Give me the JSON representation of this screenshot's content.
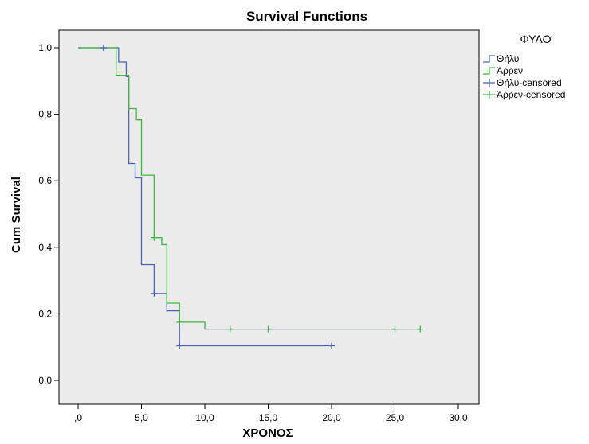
{
  "chart_data": {
    "type": "line",
    "title": "Survival Functions",
    "xlabel": "ΧΡΟΝΟΣ",
    "ylabel": "Cum Survival",
    "xlim": [
      0,
      30
    ],
    "ylim": [
      0,
      1
    ],
    "x_ticks": [
      0,
      5,
      10,
      15,
      20,
      25,
      30
    ],
    "x_tick_labels": [
      ",0",
      "5,0",
      "10,0",
      "15,0",
      "20,0",
      "25,0",
      "30,0"
    ],
    "y_ticks": [
      0,
      0.2,
      0.4,
      0.6,
      0.8,
      1.0
    ],
    "y_tick_labels": [
      "0,0",
      "0,2",
      "0,4",
      "0,6",
      "0,8",
      "1,0"
    ],
    "grid": false,
    "plot_background": "#ebebeb",
    "legend_title": "ΦΥΛΟ",
    "legend_position": "right",
    "series": [
      {
        "name": "Θήλυ",
        "color": "#4a63b5",
        "style": "step",
        "points": [
          [
            0,
            1.0
          ],
          [
            3.2,
            0.957
          ],
          [
            3.8,
            0.913
          ],
          [
            4.0,
            0.652
          ],
          [
            4.5,
            0.609
          ],
          [
            5.0,
            0.348
          ],
          [
            6.0,
            0.261
          ],
          [
            7.0,
            0.209
          ],
          [
            8.0,
            0.104
          ],
          [
            20.0,
            0.104
          ]
        ]
      },
      {
        "name": "Άρρεν",
        "color": "#3db83d",
        "style": "step",
        "points": [
          [
            0,
            1.0
          ],
          [
            3.0,
            0.917
          ],
          [
            4.0,
            0.817
          ],
          [
            4.6,
            0.783
          ],
          [
            5.0,
            0.617
          ],
          [
            6.0,
            0.429
          ],
          [
            6.6,
            0.408
          ],
          [
            7.0,
            0.232
          ],
          [
            8.0,
            0.175
          ],
          [
            10.0,
            0.154
          ],
          [
            27.0,
            0.154
          ]
        ]
      },
      {
        "name": "Θήλυ-censored",
        "color": "#4a63b5",
        "style": "censored",
        "points": [
          [
            2.0,
            1.0
          ],
          [
            6.0,
            0.261
          ],
          [
            8.0,
            0.104
          ],
          [
            20.0,
            0.104
          ]
        ]
      },
      {
        "name": "Άρρεν-censored",
        "color": "#3db83d",
        "style": "censored",
        "points": [
          [
            6.0,
            0.429
          ],
          [
            8.0,
            0.175
          ],
          [
            12.0,
            0.154
          ],
          [
            15.0,
            0.154
          ],
          [
            25.0,
            0.154
          ],
          [
            27.0,
            0.154
          ]
        ]
      }
    ]
  }
}
